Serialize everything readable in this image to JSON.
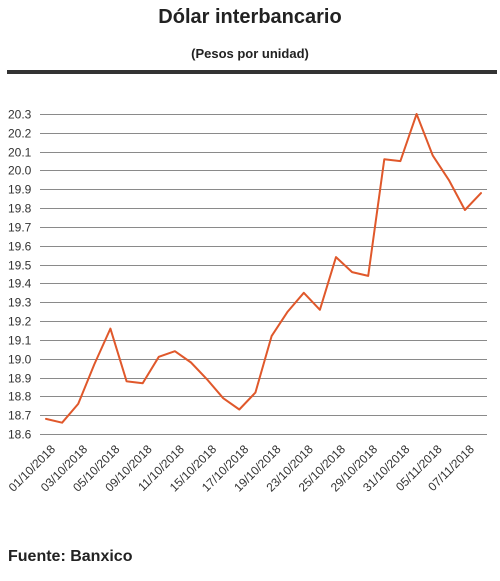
{
  "header": {
    "title": "Dólar interbancario",
    "subtitle": "(Pesos por unidad)"
  },
  "footer": {
    "source": "Fuente: Banxico"
  },
  "colors": {
    "series": "#e0582b",
    "rule": "#333333",
    "grid": "#8a8a8a"
  },
  "chart_data": {
    "type": "line",
    "title": "Dólar interbancario",
    "subtitle": "(Pesos por unidad)",
    "xlabel": "",
    "ylabel": "",
    "ylim": [
      18.6,
      20.3
    ],
    "yticks": [
      18.6,
      18.7,
      18.8,
      18.9,
      19.0,
      19.1,
      19.2,
      19.3,
      19.4,
      19.5,
      19.6,
      19.7,
      19.8,
      19.9,
      20.0,
      20.1,
      20.2,
      20.3
    ],
    "ytick_labels": [
      "18.6",
      "18.7",
      "18.8",
      "18.9",
      "19.0",
      "19.1",
      "19.2",
      "19.3",
      "19.4",
      "19.5",
      "19.6",
      "19.7",
      "19.8",
      "19.9",
      "20.0",
      "20.1",
      "20.2",
      "20.3"
    ],
    "grid": "horizontal",
    "legend": "none",
    "x": [
      "01/10/2018",
      "02/10/2018",
      "03/10/2018",
      "04/10/2018",
      "05/10/2018",
      "08/10/2018",
      "09/10/2018",
      "10/10/2018",
      "11/10/2018",
      "12/10/2018",
      "15/10/2018",
      "16/10/2018",
      "17/10/2018",
      "18/10/2018",
      "19/10/2018",
      "22/10/2018",
      "23/10/2018",
      "24/10/2018",
      "25/10/2018",
      "26/10/2018",
      "29/10/2018",
      "30/10/2018",
      "31/10/2018",
      "01/11/2018",
      "05/11/2018",
      "06/11/2018",
      "07/11/2018",
      "08/11/2018"
    ],
    "xtick_labels": [
      "01/10/2018",
      "03/10/2018",
      "05/10/2018",
      "09/10/2018",
      "11/10/2018",
      "15/10/2018",
      "17/10/2018",
      "19/10/2018",
      "23/10/2018",
      "25/10/2018",
      "29/10/2018",
      "31/10/2018",
      "05/11/2018",
      "07/11/2018"
    ],
    "series": [
      {
        "values": [
          18.68,
          18.66,
          18.76,
          18.97,
          19.16,
          18.88,
          18.87,
          19.01,
          19.04,
          18.98,
          18.89,
          18.79,
          18.73,
          18.82,
          19.12,
          19.25,
          19.35,
          19.26,
          19.54,
          19.46,
          19.44,
          20.06,
          20.05,
          20.3,
          20.08,
          19.95,
          19.79,
          19.88
        ]
      }
    ]
  }
}
